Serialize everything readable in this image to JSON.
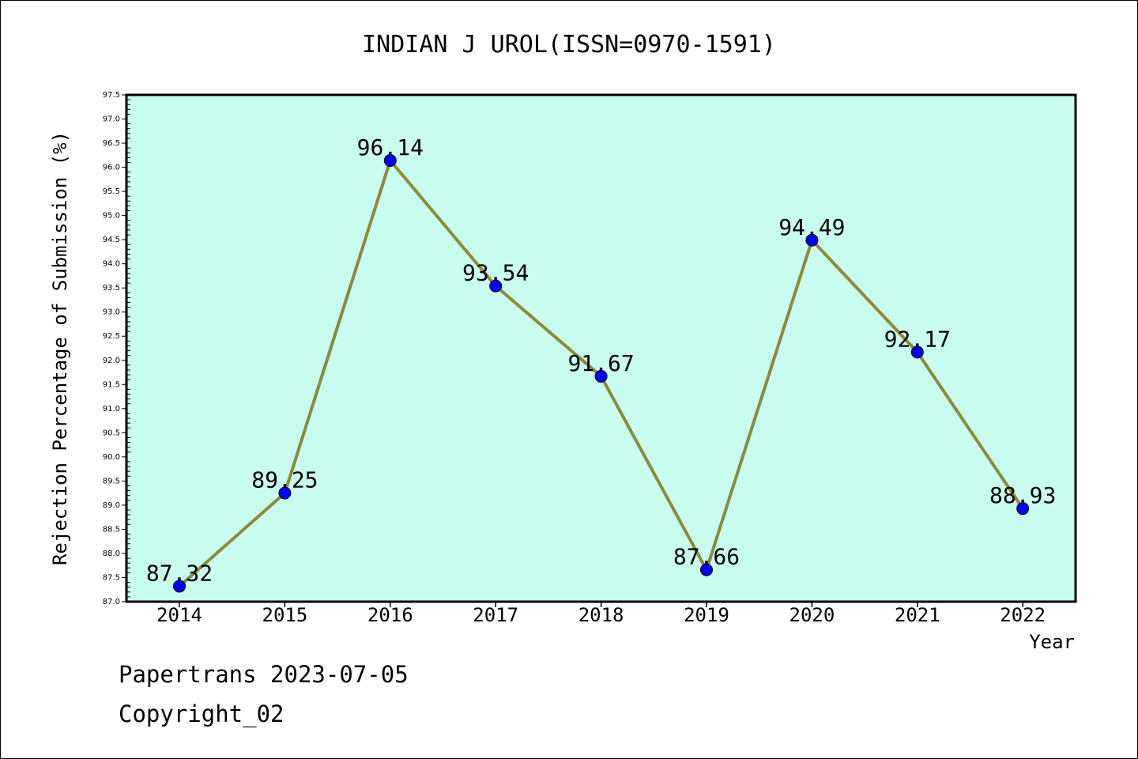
{
  "chart_data": {
    "type": "line",
    "title": "INDIAN J UROL(ISSN=0970-1591)",
    "xlabel": "Year",
    "ylabel": "Rejection Percentage of Submission (%)",
    "categories": [
      "2014",
      "2015",
      "2016",
      "2017",
      "2018",
      "2019",
      "2020",
      "2021",
      "2022"
    ],
    "series": [
      {
        "values": [
          87.32,
          89.25,
          96.14,
          93.54,
          91.67,
          87.66,
          94.49,
          92.17,
          88.93
        ],
        "labels": [
          "87.32",
          "89.25",
          "96.14",
          "93.54",
          "91.67",
          "87.66",
          "94.49",
          "92.17",
          "88.93"
        ]
      }
    ],
    "ylim": [
      87.0,
      97.5
    ],
    "ytick_step": 0.5,
    "grid": false,
    "legend": "none",
    "colors": {
      "plot_background": "#c8fcee",
      "line": "#8b8b3a",
      "marker": "#0000ff"
    }
  },
  "footer": {
    "line1": "Papertrans 2023-07-05",
    "line2": "Copyright_02"
  }
}
